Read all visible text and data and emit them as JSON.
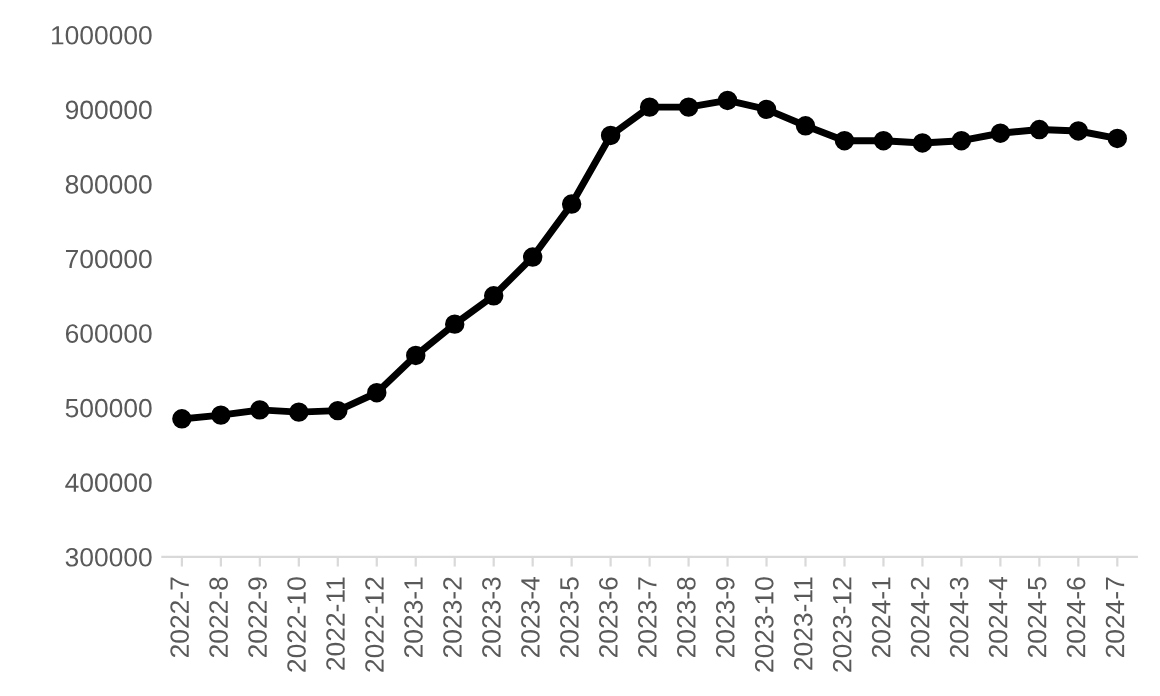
{
  "chart_data": {
    "type": "line",
    "categories": [
      "2022-7",
      "2022-8",
      "2022-9",
      "2022-10",
      "2022-11",
      "2022-12",
      "2023-1",
      "2023-2",
      "2023-3",
      "2023-4",
      "2023-5",
      "2023-6",
      "2023-7",
      "2023-8",
      "2023-9",
      "2023-10",
      "2023-11",
      "2023-12",
      "2024-1",
      "2024-2",
      "2024-3",
      "2024-4",
      "2024-5",
      "2024-6",
      "2024-7"
    ],
    "series": [
      {
        "color": "#000000",
        "values": [
          485000,
          490000,
          497000,
          494000,
          496000,
          520000,
          570000,
          612000,
          650000,
          702000,
          773000,
          865000,
          903000,
          903000,
          912000,
          900000,
          878000,
          858000,
          858000,
          855000,
          858000,
          868000,
          873000,
          871000,
          861000
        ]
      }
    ],
    "ylim": [
      300000,
      1000000
    ],
    "yticks": [
      300000,
      400000,
      500000,
      600000,
      700000,
      800000,
      900000,
      1000000
    ],
    "marker": "circle",
    "line_style": "solid",
    "grid": false,
    "legend": false
  }
}
